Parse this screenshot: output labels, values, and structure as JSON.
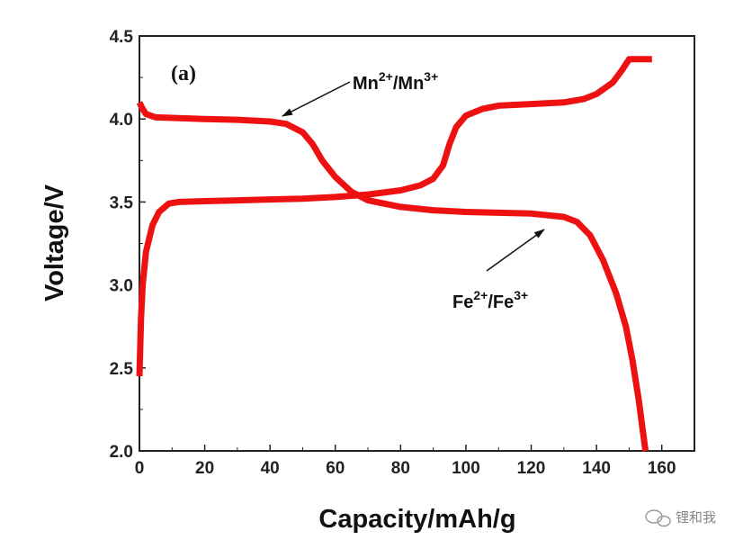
{
  "chart_data": {
    "type": "line",
    "panel_label": "(a)",
    "xlabel": "Capacity/mAh/g",
    "ylabel": "Voltage/V",
    "xlim": [
      0,
      170
    ],
    "ylim": [
      2.0,
      4.5
    ],
    "xticks": [
      0,
      20,
      40,
      60,
      80,
      100,
      120,
      140,
      160
    ],
    "yticks": [
      2.0,
      2.5,
      3.0,
      3.5,
      4.0,
      4.5
    ],
    "ytick_labels": [
      "2.0",
      "2.5",
      "3.0",
      "3.5",
      "4.0",
      "4.5"
    ],
    "grid": false,
    "line_color": "#ee1111",
    "series": [
      {
        "points": [
          [
            0,
            2.45
          ],
          [
            0.5,
            2.8
          ],
          [
            1,
            3.0
          ],
          [
            2,
            3.2
          ],
          [
            4,
            3.36
          ],
          [
            6,
            3.44
          ],
          [
            9,
            3.49
          ],
          [
            12,
            3.5
          ],
          [
            20,
            3.505
          ],
          [
            30,
            3.51
          ],
          [
            40,
            3.515
          ],
          [
            50,
            3.52
          ],
          [
            60,
            3.53
          ],
          [
            70,
            3.545
          ],
          [
            80,
            3.57
          ],
          [
            86,
            3.6
          ],
          [
            90,
            3.64
          ],
          [
            93,
            3.72
          ],
          [
            95,
            3.85
          ],
          [
            97,
            3.95
          ],
          [
            100,
            4.02
          ],
          [
            105,
            4.06
          ],
          [
            110,
            4.08
          ],
          [
            120,
            4.09
          ],
          [
            130,
            4.1
          ],
          [
            136,
            4.12
          ],
          [
            140,
            4.15
          ],
          [
            145,
            4.22
          ],
          [
            148,
            4.3
          ],
          [
            150,
            4.36
          ],
          [
            152,
            4.36
          ],
          [
            157,
            4.36
          ]
        ]
      },
      {
        "points": [
          [
            0,
            4.1
          ],
          [
            1,
            4.06
          ],
          [
            2,
            4.03
          ],
          [
            5,
            4.01
          ],
          [
            20,
            4.0
          ],
          [
            30,
            3.995
          ],
          [
            40,
            3.985
          ],
          [
            45,
            3.97
          ],
          [
            50,
            3.92
          ],
          [
            53,
            3.85
          ],
          [
            56,
            3.75
          ],
          [
            60,
            3.65
          ],
          [
            65,
            3.56
          ],
          [
            70,
            3.51
          ],
          [
            80,
            3.47
          ],
          [
            90,
            3.45
          ],
          [
            100,
            3.44
          ],
          [
            110,
            3.435
          ],
          [
            120,
            3.43
          ],
          [
            130,
            3.41
          ],
          [
            134,
            3.38
          ],
          [
            138,
            3.3
          ],
          [
            142,
            3.15
          ],
          [
            146,
            2.95
          ],
          [
            149,
            2.75
          ],
          [
            151,
            2.55
          ],
          [
            153,
            2.3
          ],
          [
            154,
            2.15
          ],
          [
            155,
            2.0
          ]
        ]
      }
    ],
    "annotations": [
      {
        "base": "Mn",
        "sup1": "2+",
        "mid": "/Mn",
        "sup2": "3+"
      },
      {
        "base": "Fe",
        "sup1": "2+",
        "mid": "/Fe",
        "sup2": "3+"
      }
    ]
  },
  "watermark_text": "锂和我"
}
